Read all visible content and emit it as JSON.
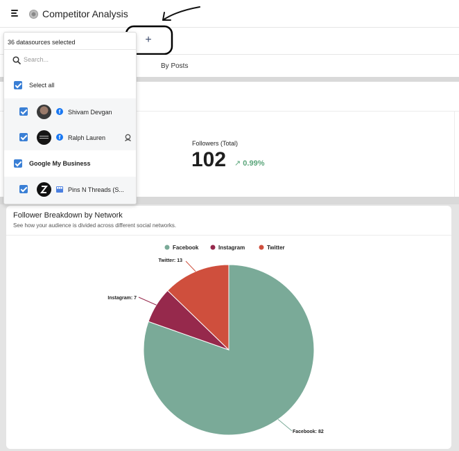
{
  "app": {
    "title": "Competitor Analysis"
  },
  "tabs": {
    "by_posts": "By Posts"
  },
  "stats": {
    "followers_label": "Followers (Total)",
    "followers_value": "102",
    "followers_change": "0.99%"
  },
  "breakdown": {
    "title": "Follower Breakdown by Network",
    "subtitle": "See how your audience is divided across different social networks."
  },
  "datasource_dropdown": {
    "selected_text": "36 datasources selected",
    "search_placeholder": "Search...",
    "select_all_label": "Select all",
    "items": [
      {
        "label": "Shivam Devgan",
        "checked": true,
        "network": "facebook"
      },
      {
        "label": "Ralph Lauren",
        "checked": true,
        "network": "facebook"
      },
      {
        "group": "Google My Business",
        "checked": true
      },
      {
        "label": "Pins N Threads (S...",
        "checked": true,
        "network": "google-my-business"
      }
    ]
  },
  "colors": {
    "facebook": "#7aaa98",
    "instagram": "#96294c",
    "twitter": "#cf4f3d",
    "accent": "#3a7fd5",
    "positive": "#5aa57a"
  },
  "chart_data": {
    "type": "pie",
    "categories": [
      "Facebook",
      "Instagram",
      "Twitter"
    ],
    "values": [
      82,
      7,
      13
    ],
    "data_labels": [
      "Facebook: 82",
      "Instagram: 7",
      "Twitter: 13"
    ],
    "colors": [
      "#7aaa98",
      "#96294c",
      "#cf4f3d"
    ],
    "legend": "top-center"
  }
}
